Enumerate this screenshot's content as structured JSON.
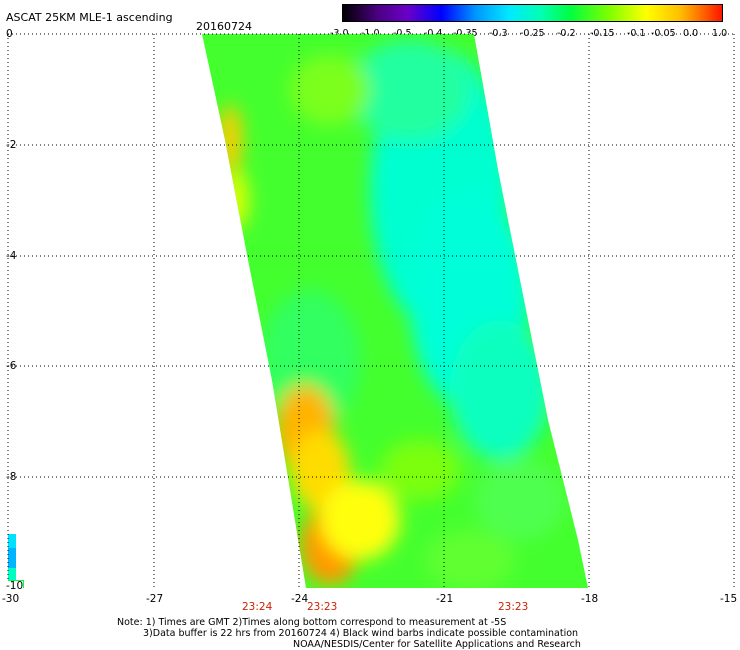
{
  "header": {
    "title": "ASCAT 25KM MLE-1 ascending",
    "date": "20160724"
  },
  "colorbar": {
    "labels": [
      "-3.0",
      "-1.0",
      "-0.5",
      "-0.4",
      "-0.35",
      "-0.3",
      "-0.25",
      "-0.2",
      "-0.15",
      "-0.1",
      "-0.05",
      "0.0",
      "1.0"
    ],
    "colors": [
      "#000000",
      "#6a00c8",
      "#0000ff",
      "#0096ff",
      "#00eaff",
      "#00ffb4",
      "#00ff40",
      "#7cff00",
      "#ffff00",
      "#ffbe00",
      "#ff6400",
      "#ff1400"
    ]
  },
  "map": {
    "y_ticks": [
      "0",
      "-2",
      "-4",
      "-6",
      "-8",
      "-10"
    ],
    "x_ticks": [
      "-30",
      "-27",
      "-24",
      "-21",
      "-18",
      "-15"
    ],
    "x_range": [
      -30,
      -15
    ],
    "y_range": [
      0,
      -10
    ],
    "times": [
      "23:24",
      "23:23",
      "23:23"
    ]
  },
  "notes": {
    "line1": "Note: 1) Times are GMT 2)Times along bottom correspond to measurement at -5S",
    "line2": "3)Data buffer is 22 hrs from 20160724 4) Black wind barbs indicate possible contamination",
    "line3": "NOAA/NESDIS/Center for Satellite Applications and Research"
  }
}
